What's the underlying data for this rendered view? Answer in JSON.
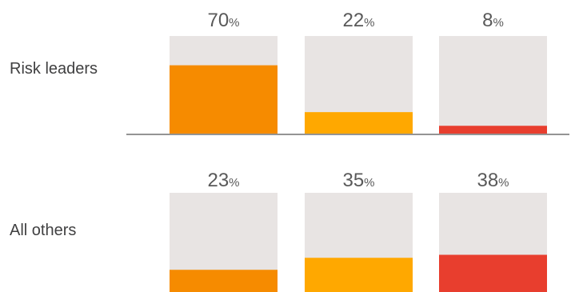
{
  "chart_data": {
    "type": "bar",
    "rows": [
      {
        "label": "Risk leaders",
        "values": [
          70,
          22,
          8
        ],
        "value_labels": [
          "70",
          "22",
          "8"
        ]
      },
      {
        "label": "All others",
        "values": [
          23,
          35,
          38
        ],
        "value_labels": [
          "23",
          "35",
          "38"
        ]
      }
    ],
    "percent_sign": "%",
    "ylim": [
      0,
      100
    ],
    "bar_colors": [
      "#f68b00",
      "#ffa800",
      "#e83e2e"
    ],
    "track_color": "#e8e4e3",
    "divider_color": "#555555"
  }
}
